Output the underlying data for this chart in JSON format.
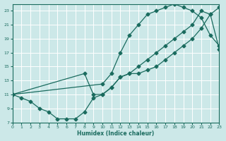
{
  "xlabel": "Humidex (Indice chaleur)",
  "background_color": "#cce8e8",
  "grid_color": "#ffffff",
  "line_color": "#1a6b5e",
  "xlim": [
    0,
    23
  ],
  "ylim": [
    7,
    24
  ],
  "xticks": [
    0,
    1,
    2,
    3,
    4,
    5,
    6,
    7,
    8,
    9,
    10,
    11,
    12,
    13,
    14,
    15,
    16,
    17,
    18,
    19,
    20,
    21,
    22,
    23
  ],
  "yticks": [
    7,
    9,
    11,
    13,
    15,
    17,
    19,
    21,
    23
  ],
  "line1_x": [
    0,
    1,
    2,
    3,
    4,
    5,
    6,
    7,
    8,
    9,
    10,
    11,
    12,
    13,
    14,
    15,
    16,
    17,
    18,
    19,
    20,
    21,
    22,
    23
  ],
  "line1_y": [
    11,
    10.5,
    10,
    9,
    8.5,
    7.5,
    7.5,
    7.5,
    8.5,
    10.5,
    11,
    12,
    13.5,
    14,
    14,
    14.5,
    15,
    16,
    17,
    18,
    19,
    20.5,
    22.5,
    23.5
  ],
  "line2_x": [
    0,
    10,
    11,
    12,
    13,
    14,
    15,
    16,
    17,
    18,
    19,
    20,
    21,
    22,
    23
  ],
  "line2_y": [
    11,
    12.5,
    14,
    17,
    19.5,
    21,
    22.5,
    23,
    23.5,
    24,
    23.5,
    23,
    22,
    19.5,
    18
  ],
  "line3_x": [
    0,
    8,
    9,
    10,
    11,
    12,
    13,
    14,
    15,
    16,
    17,
    18,
    19,
    20,
    21,
    22,
    23
  ],
  "line3_y": [
    11,
    14,
    11,
    11,
    12,
    13.5,
    14,
    15,
    16,
    17,
    18,
    19,
    20,
    21,
    23,
    22.5,
    17.5
  ]
}
